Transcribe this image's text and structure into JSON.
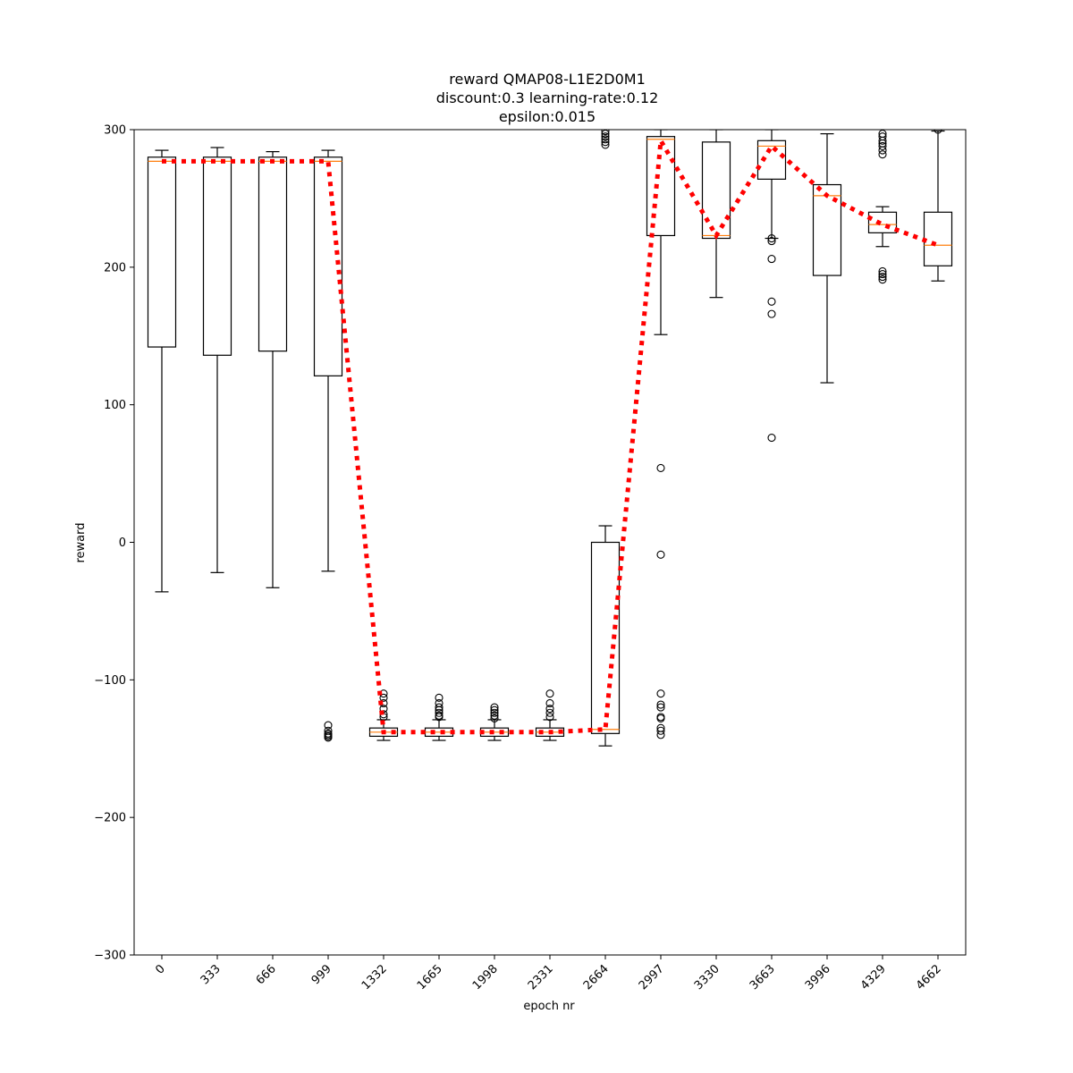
{
  "chart_data": {
    "type": "boxplot",
    "title_lines": [
      "reward QMAP08-L1E2D0M1",
      "discount:0.3 learning-rate:0.12",
      "epsilon:0.015"
    ],
    "xlabel": "epoch nr",
    "ylabel": "reward",
    "ylim": [
      -300,
      300
    ],
    "yticks": [
      -300,
      -200,
      -100,
      0,
      100,
      200,
      300
    ],
    "categories": [
      "0",
      "333",
      "666",
      "999",
      "1332",
      "1665",
      "1998",
      "2331",
      "2664",
      "2997",
      "3330",
      "3663",
      "3996",
      "4329",
      "4662"
    ],
    "boxes": [
      {
        "whisker_low": -36,
        "q1": 142,
        "median": 277,
        "q3": 280,
        "whisker_high": 285,
        "outliers": []
      },
      {
        "whisker_low": -22,
        "q1": 136,
        "median": 277,
        "q3": 280,
        "whisker_high": 287,
        "outliers": []
      },
      {
        "whisker_low": -33,
        "q1": 139,
        "median": 277,
        "q3": 280,
        "whisker_high": 284,
        "outliers": []
      },
      {
        "whisker_low": -21,
        "q1": 121,
        "median": 277,
        "q3": 280,
        "whisker_high": 285,
        "outliers": [
          -133,
          -137,
          -139,
          -140,
          -141,
          -142
        ]
      },
      {
        "whisker_low": -144,
        "q1": -141,
        "median": -138,
        "q3": -135,
        "whisker_high": -129,
        "outliers": [
          -110,
          -113,
          -117,
          -121,
          -125,
          -127
        ]
      },
      {
        "whisker_low": -144,
        "q1": -141,
        "median": -138,
        "q3": -135,
        "whisker_high": -129,
        "outliers": [
          -113,
          -117,
          -120,
          -122,
          -124,
          -126,
          -127
        ]
      },
      {
        "whisker_low": -144,
        "q1": -141,
        "median": -138,
        "q3": -135,
        "whisker_high": -129,
        "outliers": [
          -120,
          -122,
          -124,
          -126,
          -128
        ]
      },
      {
        "whisker_low": -144,
        "q1": -141,
        "median": -138,
        "q3": -135,
        "whisker_high": -129,
        "outliers": [
          -110,
          -117,
          -121,
          -124,
          -127
        ]
      },
      {
        "whisker_low": -148,
        "q1": -139,
        "median": -136,
        "q3": 0,
        "whisker_high": 12,
        "outliers": [
          289,
          291,
          293,
          295,
          297,
          299
        ]
      },
      {
        "whisker_low": 151,
        "q1": 223,
        "median": 293,
        "q3": 295,
        "whisker_high": 300,
        "outliers": [
          54,
          -9,
          -110,
          -118,
          -120,
          -127,
          -128,
          -135,
          -137,
          -140
        ]
      },
      {
        "whisker_low": 178,
        "q1": 221,
        "median": 223,
        "q3": 291,
        "whisker_high": 300,
        "outliers": []
      },
      {
        "whisker_low": 221,
        "q1": 264,
        "median": 288,
        "q3": 292,
        "whisker_high": 300,
        "outliers": [
          221,
          219,
          206,
          175,
          166,
          76
        ]
      },
      {
        "whisker_low": 116,
        "q1": 194,
        "median": 252,
        "q3": 260,
        "whisker_high": 297,
        "outliers": []
      },
      {
        "whisker_low": 215,
        "q1": 225,
        "median": 231,
        "q3": 240,
        "whisker_high": 244,
        "outliers": [
          282,
          285,
          288,
          290,
          292,
          295,
          297,
          191,
          193,
          195,
          197
        ]
      },
      {
        "whisker_low": 190,
        "q1": 201,
        "median": 216,
        "q3": 240,
        "whisker_high": 299,
        "outliers": [
          300
        ]
      }
    ],
    "mean_line": [
      277,
      277,
      277,
      277,
      -138,
      -138,
      -138,
      -138,
      -136,
      292,
      223,
      288,
      252,
      231,
      216
    ],
    "colors": {
      "box": "#000000",
      "median": "#ff7f0e",
      "mean_line": "#ff0000"
    }
  }
}
